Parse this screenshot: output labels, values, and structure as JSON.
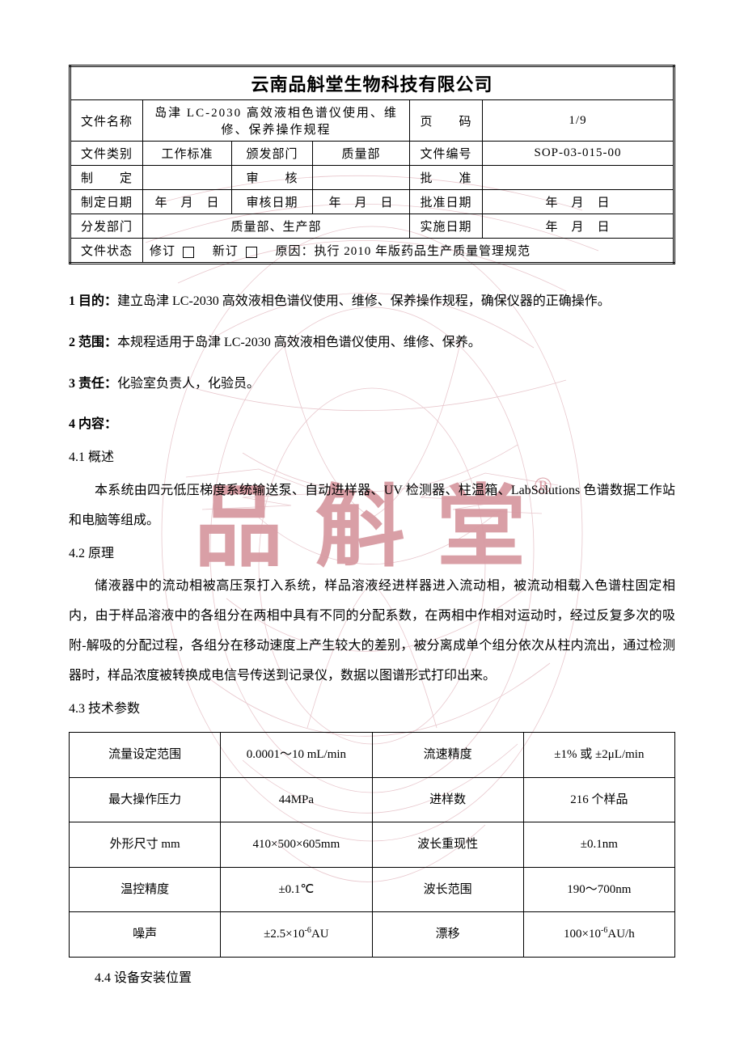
{
  "watermark": {
    "text": "品斛堂",
    "color_primary": "#d89aa2",
    "color_light": "#e8c6cc",
    "reg_mark": "®"
  },
  "header": {
    "company": "云南品斛堂生物科技有限公司",
    "labels": {
      "doc_name": "文件名称",
      "page": "页　　码",
      "doc_type": "文件类别",
      "issue_dept": "颁发部门",
      "doc_no": "文件编号",
      "drafted": "制　　定",
      "reviewed": "审　　核",
      "approved": "批　　准",
      "draft_date": "制定日期",
      "review_date": "审核日期",
      "approve_date": "批准日期",
      "dist_dept": "分发部门",
      "impl_date": "实施日期",
      "doc_status": "文件状态"
    },
    "doc_name_value": "岛津 LC-2030 高效液相色谱仪使用、维修、保养操作规程",
    "page_value": "1/9",
    "doc_type_value": "工作标准",
    "issue_dept_value": "质量部",
    "doc_no_value": "SOP-03-015-00",
    "date_placeholder": "年　月　日",
    "dist_dept_value": "质量部、生产部",
    "status_revise": "修订",
    "status_new": "新订",
    "status_reason_label": "原因：",
    "status_reason": "执行 2010 年版药品生产质量管理规范"
  },
  "body": {
    "s1_title": "1 目的：",
    "s1_text": "建立岛津 LC-2030 高效液相色谱仪使用、维修、保养操作规程，确保仪器的正确操作。",
    "s2_title": "2 范围：",
    "s2_text": "本规程适用于岛津 LC-2030 高效液相色谱仪使用、维修、保养。",
    "s3_title": "3 责任：",
    "s3_text": "化验室负责人，化验员。",
    "s4_title": "4 内容：",
    "s41_title": "4.1 概述",
    "s41_text": "本系统由四元低压梯度系统输送泵、自动进样器、UV 检测器、柱温箱、LabSolutions 色谱数据工作站和电脑等组成。",
    "s42_title": "4.2 原理",
    "s42_text": "储液器中的流动相被高压泵打入系统，样品溶液经进样器进入流动相，被流动相载入色谱柱固定相内，由于样品溶液中的各组分在两相中具有不同的分配系数，在两相中作相对运动时，经过反复多次的吸附-解吸的分配过程，各组分在移动速度上产生较大的差别，被分离成单个组分依次从柱内流出，通过检测器时，样品浓度被转换成电信号传送到记录仪，数据以图谱形式打印出来。",
    "s43_title": "4.3 技术参数",
    "s44_title": "4.4 设备安装位置"
  },
  "spec_table": {
    "rows": [
      [
        "流量设定范围",
        "0.0001～10 mL/min",
        "流速精度",
        "±1% 或 ±2μL/min"
      ],
      [
        "最大操作压力",
        "44MPa",
        "进样数",
        "216 个样品"
      ],
      [
        "外形尺寸 mm",
        "410×500×605mm",
        "波长重现性",
        "±0.1nm"
      ],
      [
        "温控精度",
        "±0.1℃",
        "波长范围",
        "190～700nm"
      ],
      [
        "噪声",
        "±2.5×10⁻⁶AU",
        "漂移",
        "100×10⁻⁶AU/h"
      ]
    ]
  },
  "colors": {
    "text": "#000000",
    "background": "#ffffff",
    "border": "#000000"
  }
}
